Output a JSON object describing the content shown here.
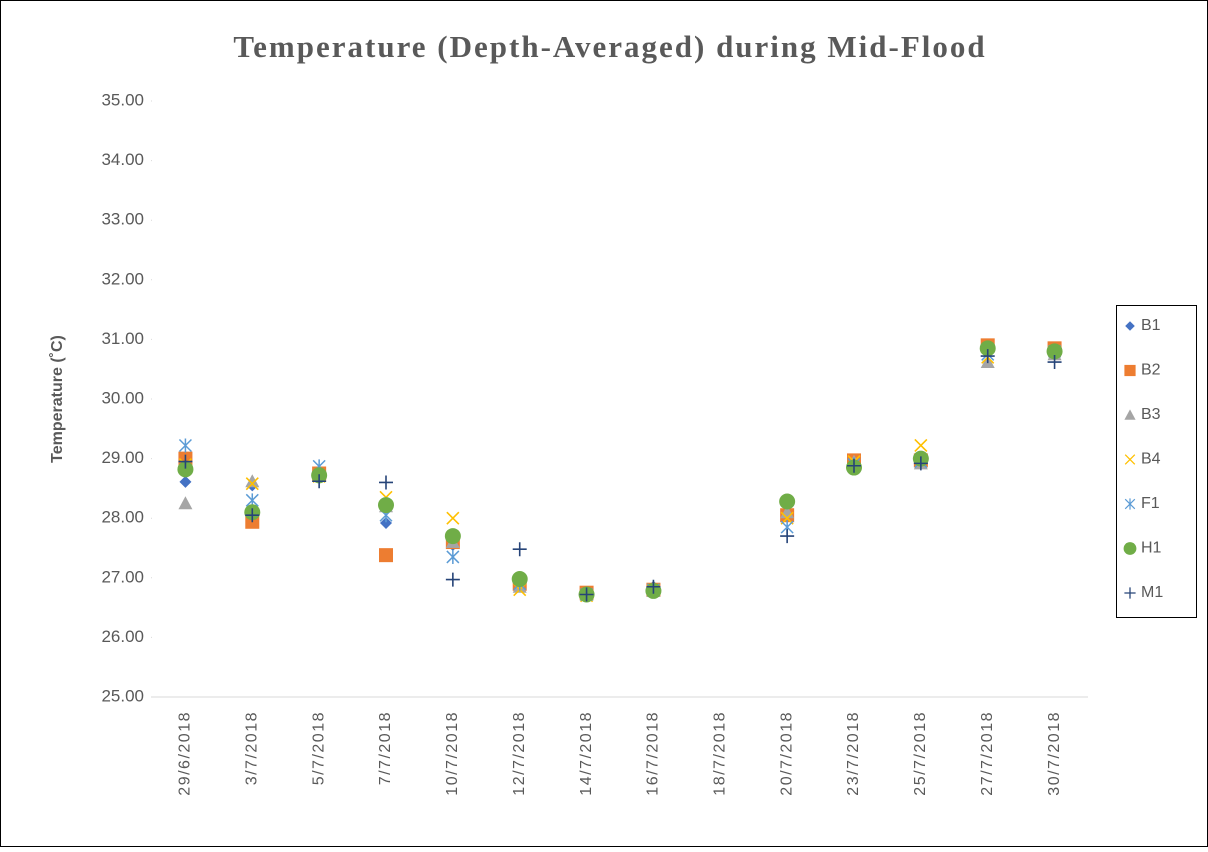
{
  "chart_data": {
    "type": "scatter",
    "title": "Temperature (Depth-Averaged) during Mid-Flood",
    "y_label": "Temperature (˚C)",
    "categories": [
      "29/6/2018",
      "3/7/2018",
      "5/7/2018",
      "7/7/2018",
      "10/7/2018",
      "12/7/2018",
      "14/7/2018",
      "16/7/2018",
      "18/7/2018",
      "20/7/2018",
      "23/7/2018",
      "25/7/2018",
      "27/7/2018",
      "30/7/2018"
    ],
    "ylim": [
      25,
      35
    ],
    "yticks": [
      {
        "value": 25,
        "label": "25.00"
      },
      {
        "value": 26,
        "label": "26.00"
      },
      {
        "value": 27,
        "label": "27.00"
      },
      {
        "value": 28,
        "label": "28.00"
      },
      {
        "value": 29,
        "label": "29.00"
      },
      {
        "value": 30,
        "label": "30.00"
      },
      {
        "value": 31,
        "label": "31.00"
      },
      {
        "value": 32,
        "label": "32.00"
      },
      {
        "value": 33,
        "label": "33.00"
      },
      {
        "value": 34,
        "label": "34.00"
      },
      {
        "value": 35,
        "label": "35.00"
      }
    ],
    "legend": "right",
    "series": [
      {
        "name": "B1",
        "color": "#4472c4",
        "marker": "diamond",
        "values": [
          28.61,
          28.55,
          28.75,
          27.92,
          27.55,
          26.9,
          26.75,
          26.85,
          null,
          28.1,
          28.9,
          28.95,
          30.8,
          30.8
        ]
      },
      {
        "name": "B2",
        "color": "#ed7d31",
        "marker": "square",
        "values": [
          29.0,
          27.94,
          28.75,
          27.38,
          27.6,
          26.9,
          26.75,
          26.8,
          null,
          28.05,
          28.97,
          28.97,
          30.9,
          30.85
        ]
      },
      {
        "name": "B3",
        "color": "#a5a5a5",
        "marker": "triangle",
        "values": [
          28.25,
          28.62,
          28.8,
          28.2,
          27.6,
          26.85,
          26.72,
          26.78,
          null,
          28.1,
          28.95,
          28.92,
          30.62,
          30.75
        ]
      },
      {
        "name": "B4",
        "color": "#ffc000",
        "marker": "x",
        "values": [
          28.9,
          28.58,
          28.7,
          28.35,
          28.0,
          26.8,
          26.7,
          26.8,
          null,
          28.0,
          28.95,
          29.22,
          30.7,
          30.8
        ]
      },
      {
        "name": "F1",
        "color": "#5b9bd5",
        "marker": "star",
        "values": [
          29.22,
          28.3,
          28.87,
          28.05,
          27.35,
          26.9,
          26.72,
          26.8,
          null,
          27.85,
          28.9,
          28.95,
          30.75,
          30.8
        ]
      },
      {
        "name": "H1",
        "color": "#70ad47",
        "marker": "circle",
        "values": [
          28.82,
          28.1,
          28.72,
          28.22,
          27.7,
          26.98,
          26.72,
          26.78,
          null,
          28.28,
          28.85,
          29.0,
          30.85,
          30.8
        ]
      },
      {
        "name": "M1",
        "color": "#264478",
        "marker": "plus",
        "values": [
          28.95,
          28.05,
          28.62,
          28.6,
          26.97,
          27.48,
          26.72,
          26.85,
          null,
          27.7,
          28.88,
          28.92,
          30.72,
          30.62
        ]
      }
    ]
  }
}
